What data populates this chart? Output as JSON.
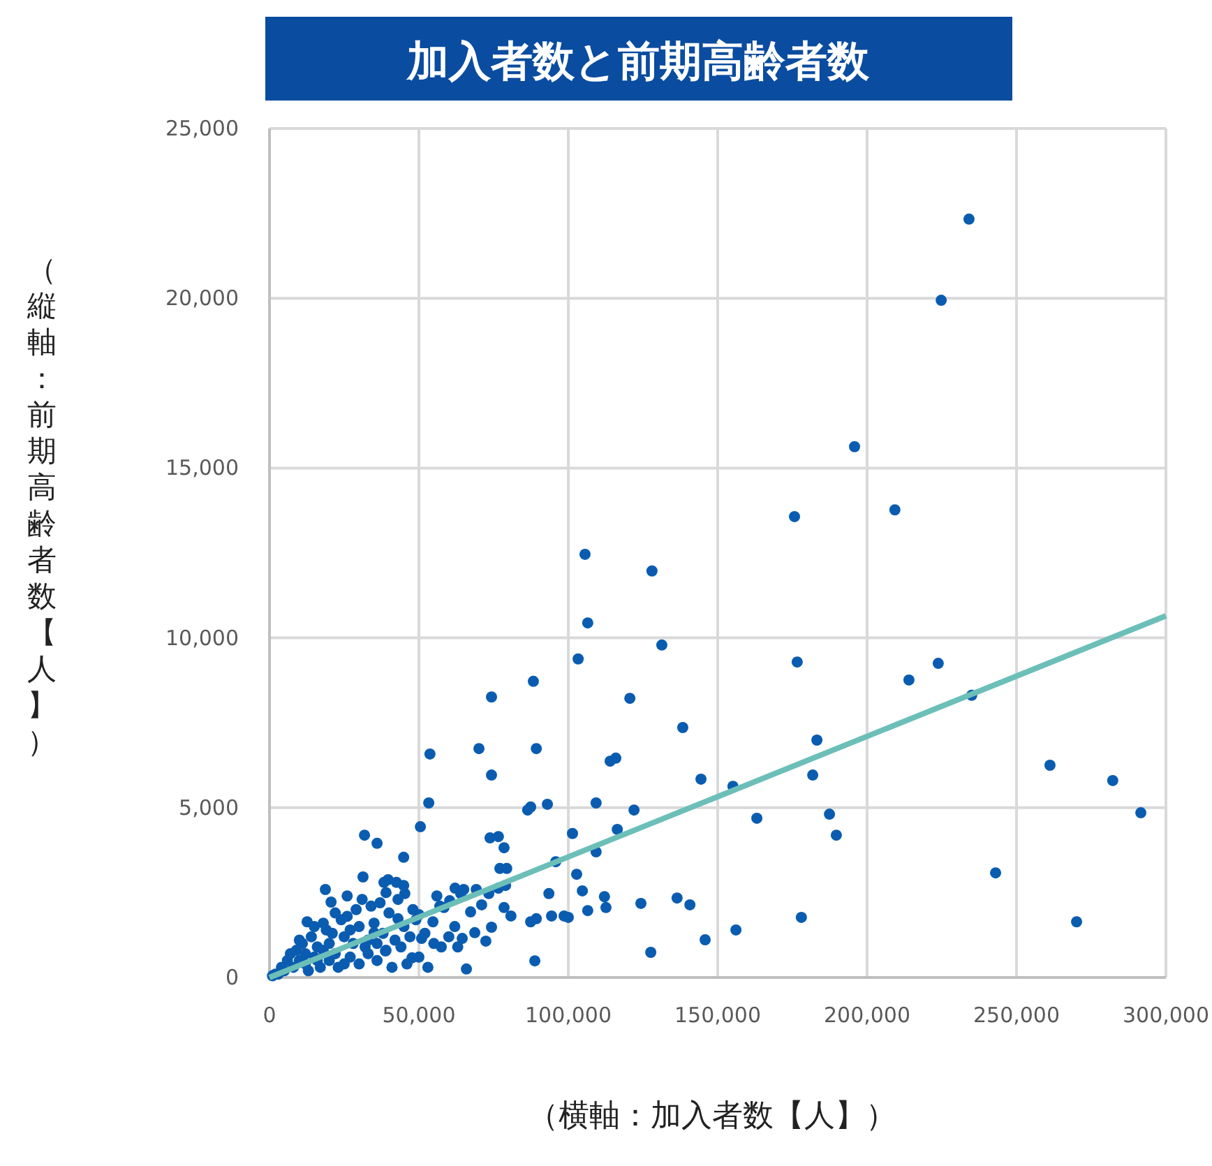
{
  "chart_data": {
    "type": "scatter",
    "title": "加入者数と前期高齢者数",
    "xlabel": "（横軸：加入者数【人】）",
    "ylabel": "（縦軸：前期高齢者数【人】）",
    "xlim": [
      0,
      300000
    ],
    "ylim": [
      0,
      25000
    ],
    "xticks": [
      {
        "value": 0,
        "label": "0"
      },
      {
        "value": 50000,
        "label": "50,000"
      },
      {
        "value": 100000,
        "label": "100,000"
      },
      {
        "value": 150000,
        "label": "150,000"
      },
      {
        "value": 200000,
        "label": "200,000"
      },
      {
        "value": 250000,
        "label": "250,000"
      },
      {
        "value": 300000,
        "label": "300,000"
      }
    ],
    "yticks": [
      {
        "value": 0,
        "label": "0"
      },
      {
        "value": 5000,
        "label": "5,000"
      },
      {
        "value": 10000,
        "label": "10,000"
      },
      {
        "value": 15000,
        "label": "15,000"
      },
      {
        "value": 20000,
        "label": "20,000"
      },
      {
        "value": 25000,
        "label": "25,000"
      }
    ],
    "grid": true,
    "series": [
      {
        "marker": "circle",
        "color": "#0a5cb0",
        "x": [
          234100,
          224800,
          195800,
          209300,
          175700,
          105600,
          128000,
          106500,
          131300,
          103300,
          176600,
          223800,
          214000,
          88300,
          74300,
          120600,
          235000,
          138300,
          183200,
          70100,
          89300,
          53700,
          114000,
          115900,
          261200,
          282200,
          144400,
          155100,
          74300,
          181800,
          291600,
          109300,
          122000,
          163100,
          187400,
          189700,
          87400,
          93000,
          86400,
          53300,
          50500,
          31800,
          36000,
          73800,
          76600,
          78500,
          101400,
          116400,
          109300,
          95800,
          243000,
          44900,
          77100,
          79400,
          93500,
          112100,
          136400,
          140700,
          124300,
          102800,
          104700,
          106500,
          112600,
          98600,
          87400,
          89300,
          94400,
          100000,
          178000,
          156100,
          270100,
          127600,
          145800,
          88800,
          65900,
          67300,
          73400,
          64000,
          62100,
          69200,
          76600,
          79000,
          60300,
          71000,
          78500,
          80800,
          74300,
          68700,
          72400,
          64500,
          57500,
          50900,
          47700,
          38800,
          35000,
          43000,
          50000,
          54700,
          58400,
          45300,
          39700,
          38300,
          42500,
          44900,
          18700,
          20600,
          31300,
          12600,
          65000,
          5000,
          3000,
          8000,
          10000,
          12000,
          15000,
          18000,
          20000,
          22000,
          25000,
          28000,
          30000,
          32000,
          35000,
          38000,
          40000,
          42000,
          45000,
          48000,
          6000,
          9000,
          11000,
          14000,
          16000,
          19000,
          21000,
          24000,
          26000,
          27000,
          30000,
          33000,
          36000,
          41000,
          44000,
          46000,
          50000,
          13000,
          17000,
          23000,
          29000,
          31000,
          34000,
          37000,
          39000,
          26000,
          22000,
          18000,
          15000,
          10000,
          7000,
          4000,
          2000,
          1000,
          52000,
          55000,
          56000,
          53000,
          57000,
          60000,
          62000,
          63000,
          43000,
          47000,
          49000,
          27000,
          33000,
          36000,
          39000,
          20000,
          25000,
          12000,
          16000
        ],
        "values": [
          22330,
          19940,
          15630,
          13770,
          13570,
          12460,
          11970,
          10440,
          9790,
          9380,
          9290,
          9250,
          8760,
          8720,
          8260,
          8220,
          8310,
          7360,
          6990,
          6740,
          6740,
          6580,
          6370,
          6460,
          6250,
          5800,
          5840,
          5630,
          5960,
          5960,
          4850,
          5140,
          4930,
          4690,
          4810,
          4190,
          5020,
          5100,
          4930,
          5140,
          4440,
          4190,
          3950,
          4110,
          4150,
          3820,
          4240,
          4360,
          3700,
          3410,
          3080,
          3540,
          3210,
          3210,
          2470,
          2380,
          2340,
          2140,
          2180,
          3040,
          2550,
          1970,
          2060,
          1810,
          1640,
          1730,
          1810,
          1770,
          1770,
          1400,
          1640,
          740,
          1110,
          490,
          250,
          1930,
          2470,
          2470,
          2630,
          2590,
          2630,
          2710,
          2260,
          2140,
          2060,
          1810,
          1480,
          1320,
          1070,
          1150,
          900,
          1150,
          580,
          780,
          1320,
          1730,
          1850,
          1640,
          2060,
          2470,
          2880,
          2800,
          2800,
          2710,
          2590,
          2220,
          2960,
          1640,
          2590,
          200,
          100,
          300,
          500,
          400,
          600,
          800,
          1000,
          700,
          1200,
          1000,
          1500,
          900,
          1600,
          1300,
          1900,
          1100,
          1500,
          2000,
          500,
          800,
          1000,
          1200,
          900,
          1400,
          1300,
          1700,
          1800,
          600,
          400,
          700,
          500,
          300,
          900,
          400,
          600,
          200,
          300,
          300,
          2000,
          2300,
          2100,
          2200,
          2500,
          2400,
          1900,
          1600,
          1500,
          1100,
          700,
          300,
          100,
          50,
          1300,
          1000,
          2400,
          300,
          2100,
          1200,
          1500,
          900,
          2300,
          1200,
          1700,
          1400,
          1100,
          1000,
          800,
          500,
          400,
          700,
          500
        ]
      },
      {
        "type": "line",
        "color": "#6cbfb8",
        "x": [
          0,
          300000
        ],
        "values": [
          0,
          10650
        ]
      }
    ]
  }
}
